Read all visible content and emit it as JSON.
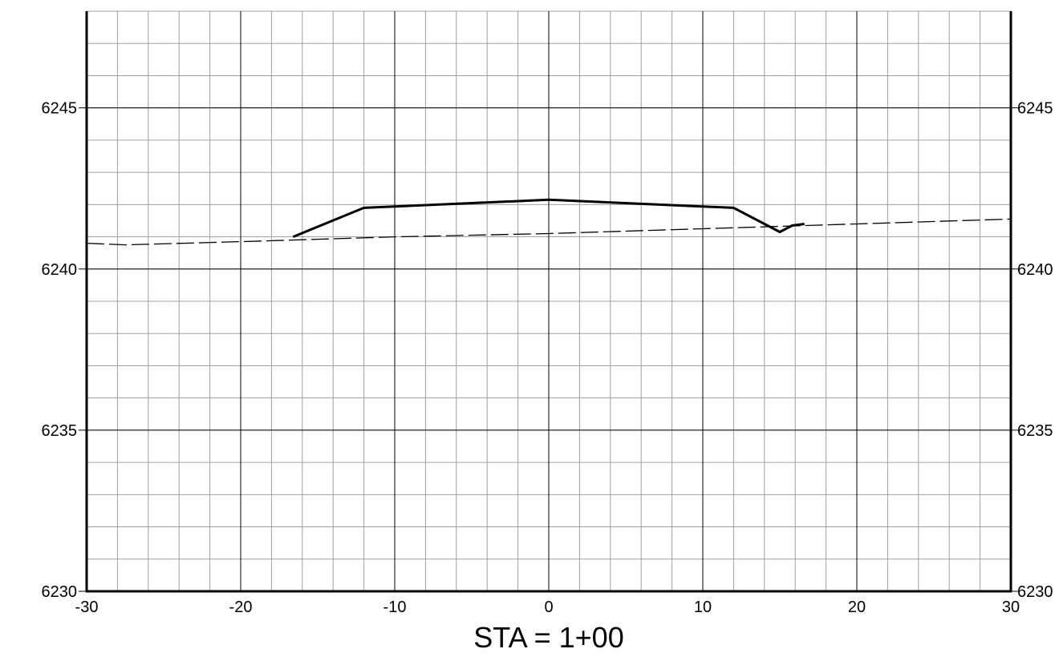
{
  "chart_data": {
    "type": "line",
    "title": "STA = 1+00",
    "xlabel": "",
    "ylabel": "",
    "xlim": [
      -30,
      30
    ],
    "ylim": [
      6230,
      6248
    ],
    "x_major_ticks": [
      -30,
      -20,
      -10,
      0,
      10,
      20,
      30
    ],
    "x_tick_labels": [
      "-30",
      "-20",
      "-10",
      "0",
      "10",
      "20",
      "30"
    ],
    "x_minor_step": 2,
    "y_major_ticks": [
      6230,
      6235,
      6240,
      6245
    ],
    "y_tick_labels": [
      "6230",
      "6235",
      "6240",
      "6245"
    ],
    "y_minor_step": 1,
    "grid": true,
    "series": [
      {
        "style": "solid",
        "color": "#000000",
        "x": [
          -16.6,
          -12,
          0,
          12,
          15,
          15.8,
          16.6
        ],
        "y": [
          6241.0,
          6241.9,
          6242.15,
          6241.9,
          6241.15,
          6241.35,
          6241.4
        ]
      },
      {
        "style": "dashed",
        "color": "#000000",
        "x": [
          -30,
          -27.5,
          -20,
          -10,
          0,
          10,
          20,
          30
        ],
        "y": [
          6240.8,
          6240.75,
          6240.85,
          6241.0,
          6241.1,
          6241.25,
          6241.4,
          6241.55
        ]
      }
    ]
  }
}
